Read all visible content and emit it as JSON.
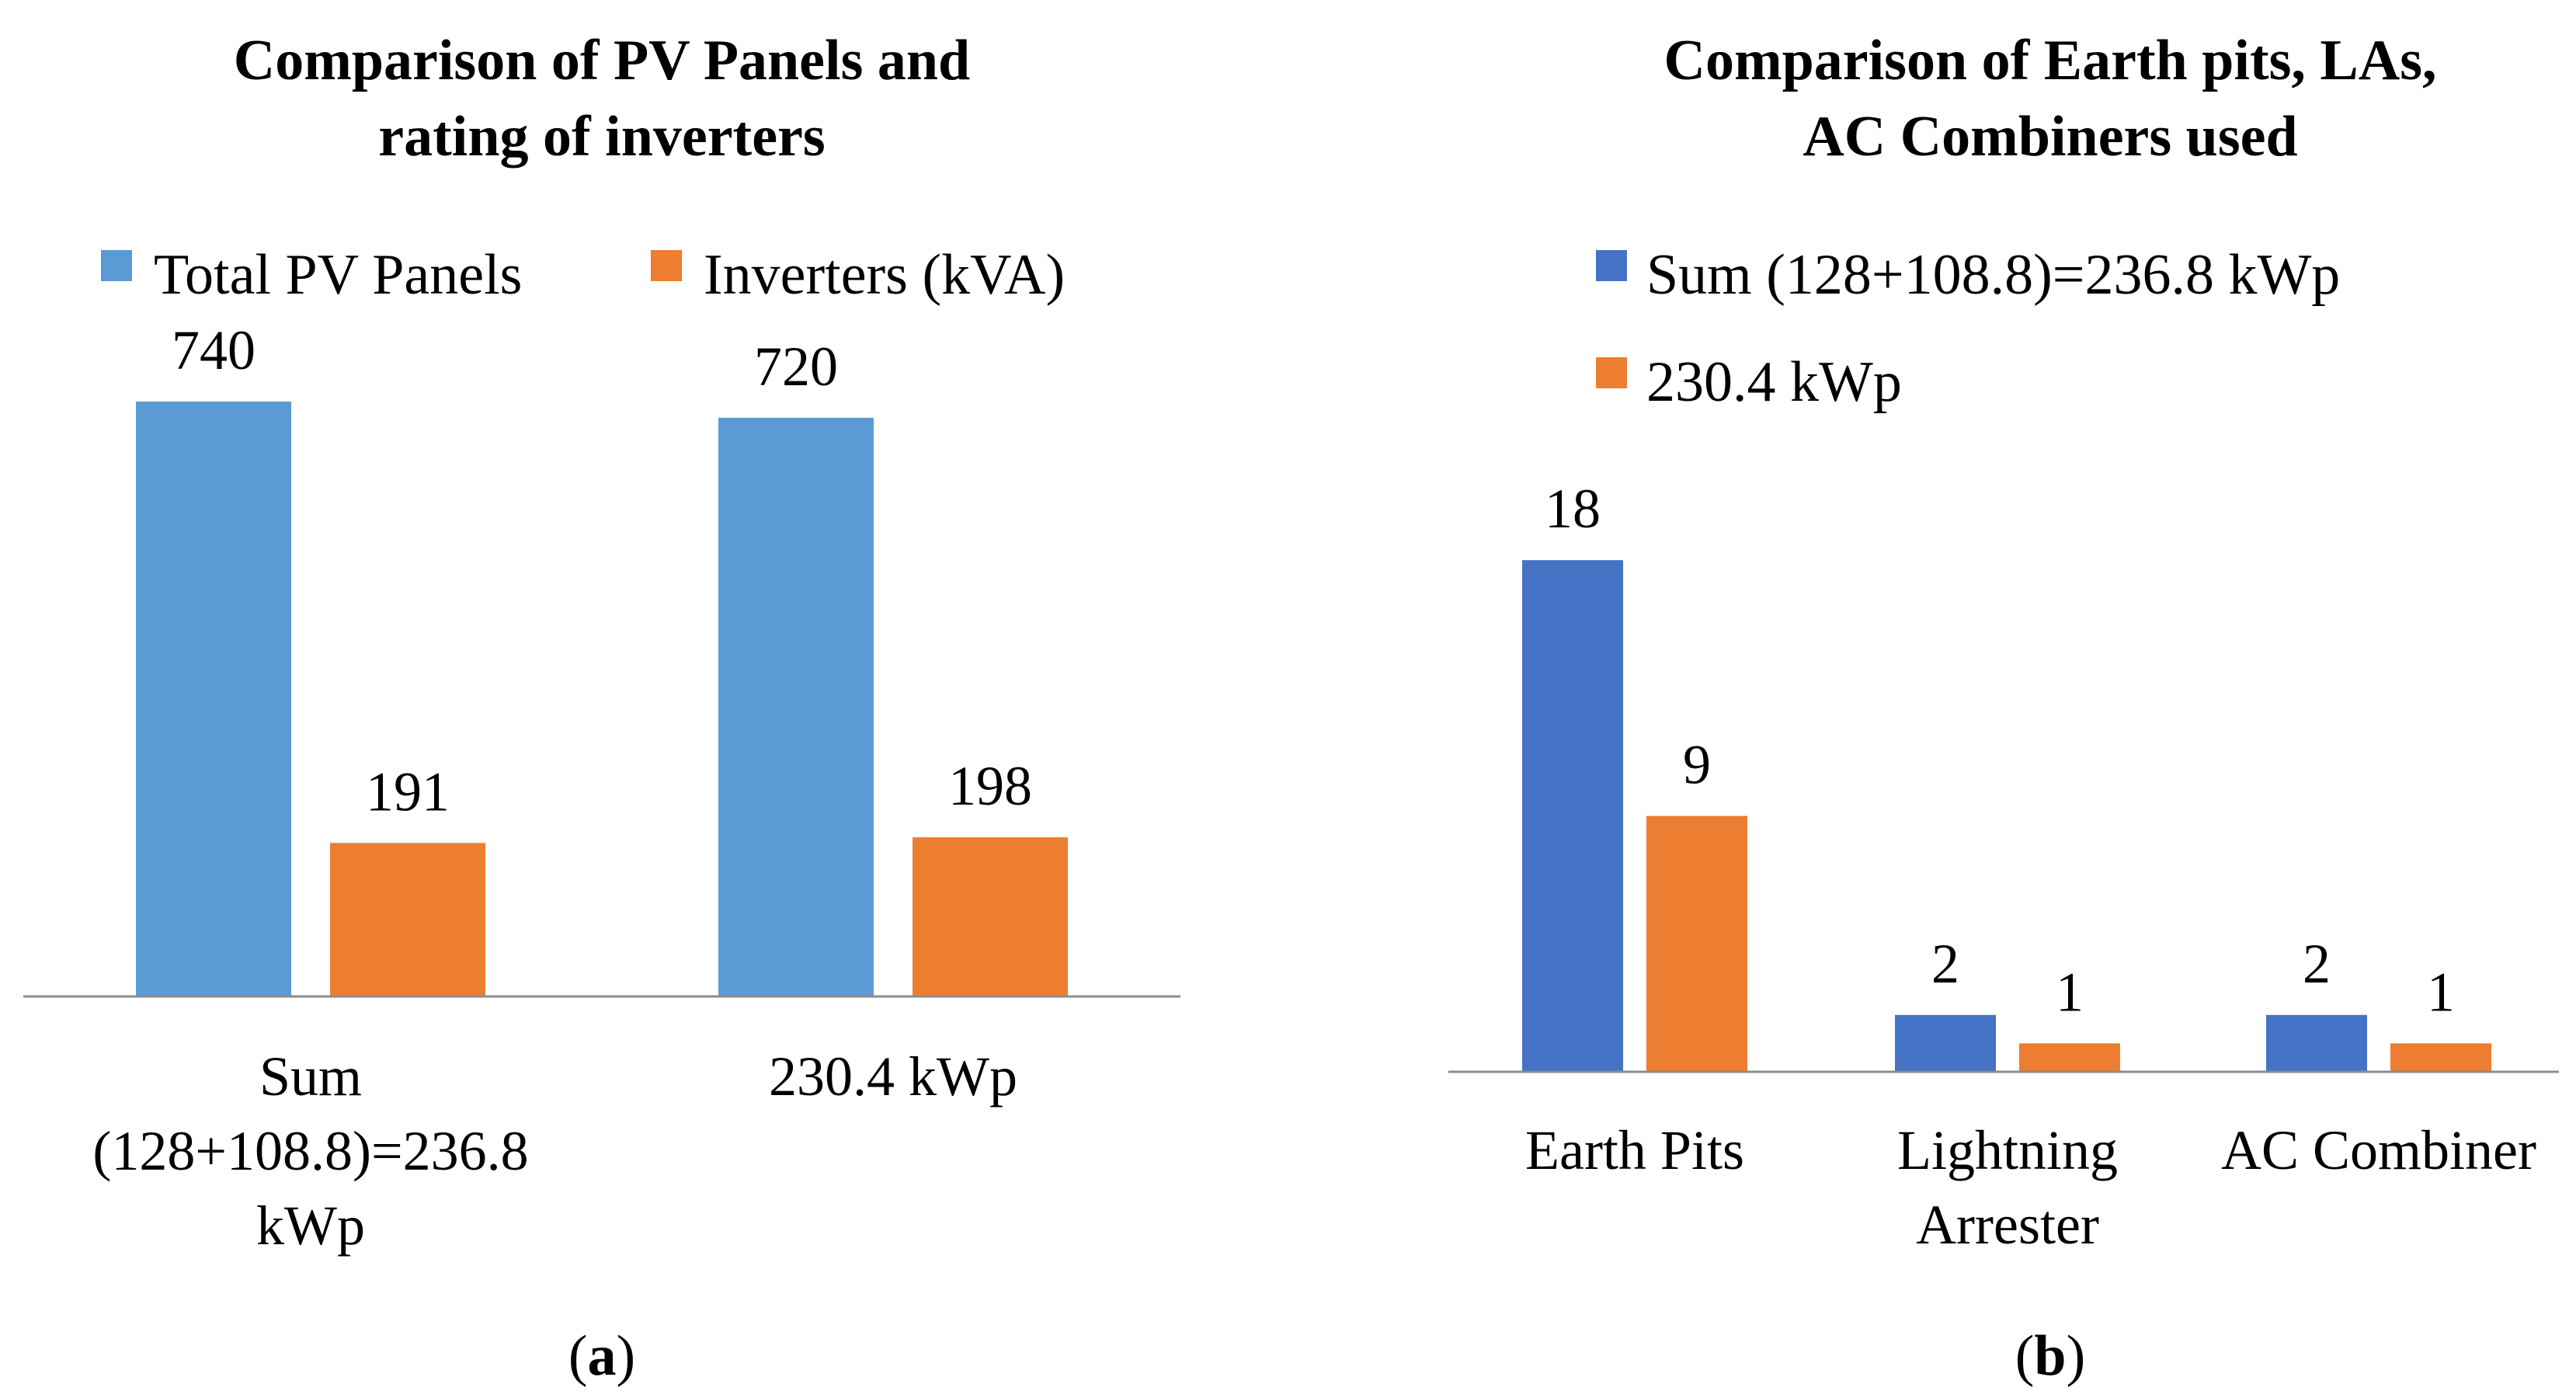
{
  "chart_data": [
    {
      "type": "bar",
      "title": "Comparison of PV Panels and rating of inverters",
      "title_lines": [
        "Comparison of PV Panels and",
        "rating of inverters"
      ],
      "categories": [
        "Sum (128+108.8)=236.8 kWp",
        "230.4 kWp"
      ],
      "category_lines": [
        [
          "Sum",
          "(128+108.8)=236.8",
          "kWp"
        ],
        [
          "230.4 kWp"
        ]
      ],
      "series": [
        {
          "name": "Total PV Panels",
          "values": [
            740,
            720
          ],
          "color": "#5B9BD5"
        },
        {
          "name": "Inverters (kVA)",
          "values": [
            191,
            198
          ],
          "color": "#ED7D31"
        }
      ],
      "ylim": [
        0,
        800
      ],
      "grid": false,
      "legend_position": "top",
      "xlabel": "",
      "ylabel": "",
      "caption": {
        "open": "(",
        "letter": "a",
        "close": ")"
      }
    },
    {
      "type": "bar",
      "title": "Comparison of Earth pits, LAs, AC Combiners used",
      "title_lines": [
        "Comparison of Earth pits, LAs,",
        "AC Combiners used"
      ],
      "categories": [
        "Earth Pits",
        "Lightning Arrester",
        "AC Combiner"
      ],
      "category_lines": [
        [
          "Earth Pits"
        ],
        [
          "Lightning",
          "Arrester"
        ],
        [
          "AC Combiner"
        ]
      ],
      "series": [
        {
          "name": "Sum (128+108.8)=236.8 kWp",
          "values": [
            18,
            2,
            2
          ],
          "color": "#4472C4"
        },
        {
          "name": "230.4 kWp",
          "values": [
            9,
            1,
            1
          ],
          "color": "#ED7D31"
        }
      ],
      "ylim": [
        0,
        20
      ],
      "grid": false,
      "legend_position": "top",
      "xlabel": "",
      "ylabel": "",
      "caption": {
        "open": "(",
        "letter": "b",
        "close": ")"
      }
    }
  ]
}
